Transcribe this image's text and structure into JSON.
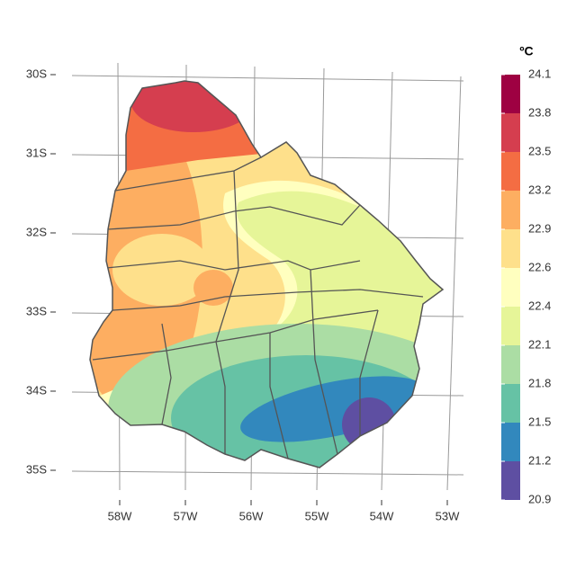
{
  "map": {
    "lat_labels": [
      "30S",
      "31S",
      "32S",
      "33S",
      "34S",
      "35S"
    ],
    "lon_labels": [
      "58W",
      "57W",
      "56W",
      "55W",
      "54W",
      "53W"
    ],
    "legend": {
      "title": "ºC",
      "breaks": [
        20.9,
        21.2,
        21.5,
        21.8,
        22.1,
        22.4,
        22.6,
        22.9,
        23.2,
        23.5,
        23.8,
        24.1
      ],
      "colors": [
        "#5e4fa2",
        "#3288bd",
        "#66c2a5",
        "#abdda4",
        "#e6f598",
        "#ffffbf",
        "#fee08b",
        "#fdae61",
        "#f46d43",
        "#d53e4f",
        "#9e0142"
      ]
    }
  }
}
